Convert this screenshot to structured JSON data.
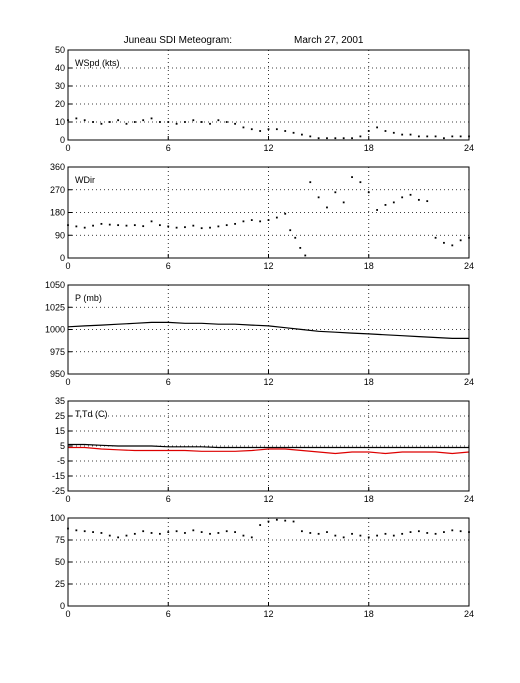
{
  "figure": {
    "title_left": "Juneau SDI Meteogram:",
    "title_right": "March 27, 2001"
  },
  "chart_data": [
    {
      "type": "scatter",
      "label": "WSpd (kts)",
      "xlim": [
        0,
        24
      ],
      "ylim": [
        0,
        50
      ],
      "xticks": [
        0,
        6,
        12,
        18,
        24
      ],
      "yticks": [
        0,
        10,
        20,
        30,
        40,
        50
      ],
      "grid": true,
      "series": [
        {
          "color": "#000000",
          "style": "points",
          "x": [
            0,
            0.5,
            1,
            1.5,
            2,
            2.5,
            3,
            3.5,
            4,
            4.5,
            5,
            5.5,
            6,
            6.5,
            7,
            7.5,
            8,
            8.5,
            9,
            9.5,
            10,
            10.5,
            11,
            11.5,
            12,
            12.5,
            13,
            13.5,
            14,
            14.5,
            15,
            15.5,
            16,
            16.5,
            17,
            17.5,
            18,
            18.5,
            19,
            19.5,
            20,
            20.5,
            21,
            21.5,
            22,
            22.5,
            23,
            23.5,
            24
          ],
          "values": [
            11,
            12,
            11,
            10,
            9,
            10,
            11,
            9,
            10,
            11,
            12,
            10,
            10,
            9,
            10,
            11,
            10,
            9,
            11,
            10,
            9,
            7,
            6,
            5,
            6,
            6,
            5,
            4,
            3,
            2,
            1,
            1,
            1,
            1,
            1,
            2,
            5,
            7,
            5,
            4,
            3,
            3,
            2,
            2,
            2,
            1,
            2,
            2,
            2
          ]
        }
      ]
    },
    {
      "type": "scatter",
      "label": "WDir",
      "xlim": [
        0,
        24
      ],
      "ylim": [
        0,
        360
      ],
      "xticks": [
        0,
        6,
        12,
        18,
        24
      ],
      "yticks": [
        0,
        90,
        180,
        270,
        360
      ],
      "grid": true,
      "series": [
        {
          "color": "#000000",
          "style": "points",
          "x": [
            0,
            0.5,
            1,
            1.5,
            2,
            2.5,
            3,
            3.5,
            4,
            4.5,
            5,
            5.5,
            6,
            6.5,
            7,
            7.5,
            8,
            8.5,
            9,
            9.5,
            10,
            10.5,
            11,
            11.5,
            12,
            12.5,
            13,
            13.3,
            13.6,
            13.9,
            14.2,
            14.5,
            15,
            15.5,
            16,
            16.5,
            17,
            17.5,
            18,
            18.5,
            19,
            19.5,
            20,
            20.5,
            21,
            21.5,
            22,
            22.5,
            23,
            23.5,
            24
          ],
          "values": [
            130,
            125,
            120,
            128,
            135,
            132,
            130,
            128,
            130,
            126,
            145,
            130,
            125,
            120,
            122,
            128,
            118,
            120,
            125,
            130,
            135,
            145,
            150,
            145,
            150,
            160,
            175,
            110,
            80,
            40,
            10,
            300,
            240,
            200,
            260,
            220,
            320,
            300,
            260,
            190,
            210,
            220,
            240,
            250,
            230,
            225,
            80,
            60,
            50,
            70,
            80
          ]
        }
      ]
    },
    {
      "type": "line",
      "label": "P (mb)",
      "xlim": [
        0,
        24
      ],
      "ylim": [
        950,
        1050
      ],
      "xticks": [
        0,
        6,
        12,
        18,
        24
      ],
      "yticks": [
        950,
        975,
        1000,
        1025,
        1050
      ],
      "grid": true,
      "series": [
        {
          "color": "#000000",
          "style": "line",
          "x": [
            0,
            1,
            2,
            3,
            4,
            5,
            6,
            7,
            8,
            9,
            10,
            11,
            12,
            13,
            14,
            15,
            16,
            17,
            18,
            19,
            20,
            21,
            22,
            23,
            24
          ],
          "values": [
            1003,
            1004,
            1005,
            1006,
            1007,
            1008,
            1008,
            1007,
            1007,
            1006,
            1006,
            1005,
            1004,
            1002,
            1000,
            998,
            997,
            996,
            995,
            994,
            993,
            992,
            991,
            990,
            990
          ]
        }
      ]
    },
    {
      "type": "line",
      "label": "T,Td (C)",
      "xlim": [
        0,
        24
      ],
      "ylim": [
        -25,
        35
      ],
      "xticks": [
        0,
        6,
        12,
        18,
        24
      ],
      "yticks": [
        -25,
        -15,
        -5,
        5,
        15,
        25,
        35
      ],
      "grid": true,
      "series": [
        {
          "color": "#000000",
          "style": "line",
          "x": [
            0,
            1,
            2,
            3,
            4,
            5,
            6,
            7,
            8,
            9,
            10,
            11,
            12,
            13,
            14,
            15,
            16,
            17,
            18,
            19,
            20,
            21,
            22,
            23,
            24
          ],
          "values": [
            6,
            6,
            5.5,
            5,
            5,
            5,
            4.5,
            4.5,
            4.5,
            4,
            4,
            4,
            4,
            4,
            4,
            4,
            4,
            4,
            4,
            4,
            4,
            4,
            4,
            4,
            4
          ]
        },
        {
          "color": "#dd0000",
          "style": "line",
          "x": [
            0,
            1,
            2,
            3,
            4,
            5,
            6,
            7,
            8,
            9,
            10,
            11,
            12,
            13,
            14,
            15,
            16,
            17,
            18,
            19,
            20,
            21,
            22,
            23,
            24
          ],
          "values": [
            4,
            4,
            3,
            2.5,
            2,
            2,
            2,
            2,
            1.5,
            1.5,
            1.5,
            2,
            3,
            3,
            2,
            1,
            0,
            1,
            1,
            0,
            1,
            1,
            1,
            0,
            1
          ]
        }
      ]
    },
    {
      "type": "scatter",
      "label": "",
      "xlim": [
        0,
        24
      ],
      "ylim": [
        0,
        100
      ],
      "xticks": [
        0,
        6,
        12,
        18,
        24
      ],
      "yticks": [
        0,
        25,
        50,
        75,
        100
      ],
      "grid": true,
      "series": [
        {
          "color": "#000000",
          "style": "points",
          "x": [
            0,
            0.5,
            1,
            1.5,
            2,
            2.5,
            3,
            3.5,
            4,
            4.5,
            5,
            5.5,
            6,
            6.5,
            7,
            7.5,
            8,
            8.5,
            9,
            9.5,
            10,
            10.5,
            11,
            11.5,
            12,
            12.5,
            13,
            13.5,
            14,
            14.5,
            15,
            15.5,
            16,
            16.5,
            17,
            17.5,
            18,
            18.5,
            19,
            19.5,
            20,
            20.5,
            21,
            21.5,
            22,
            22.5,
            23,
            23.5,
            24
          ],
          "values": [
            88,
            86,
            85,
            84,
            83,
            80,
            78,
            80,
            82,
            85,
            83,
            82,
            84,
            85,
            83,
            86,
            84,
            82,
            83,
            85,
            84,
            80,
            78,
            92,
            96,
            98,
            97,
            96,
            85,
            83,
            82,
            84,
            80,
            78,
            82,
            80,
            78,
            80,
            82,
            80,
            82,
            84,
            85,
            83,
            82,
            84,
            86,
            85,
            84
          ]
        }
      ]
    }
  ]
}
